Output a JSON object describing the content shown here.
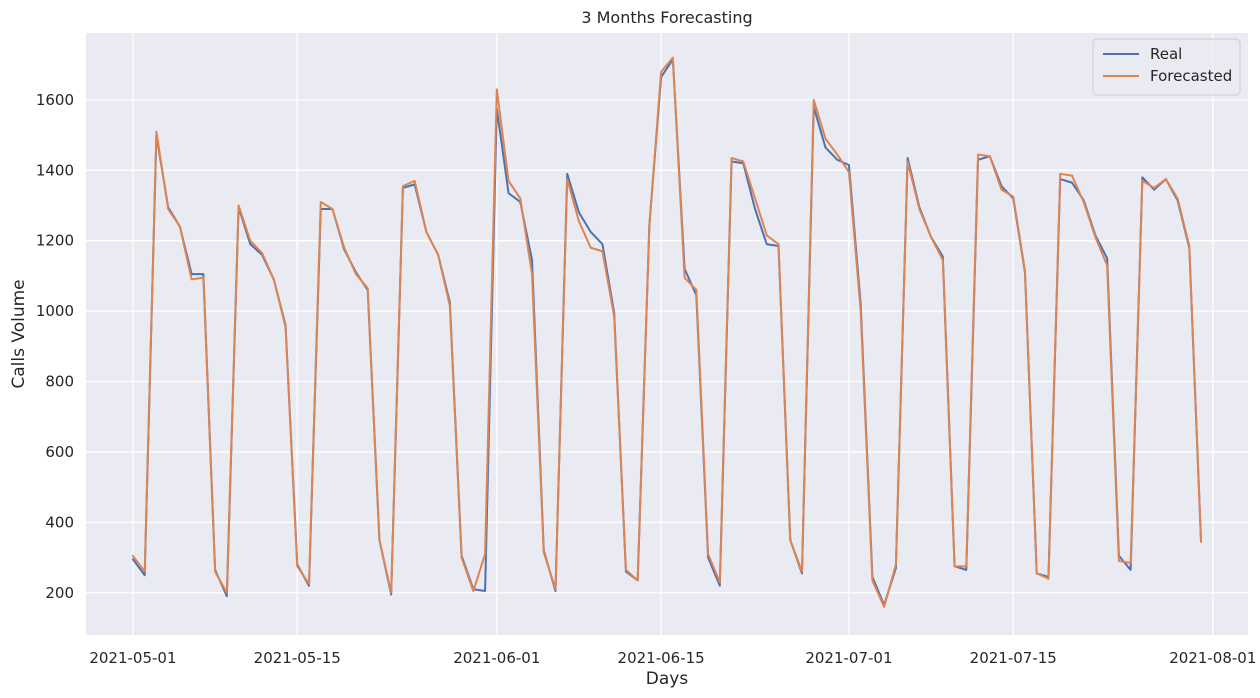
{
  "chart_data": {
    "type": "line",
    "title": "3 Months Forecasting",
    "xlabel": "Days",
    "ylabel": "Calls Volume",
    "x_start": "2021-05-01",
    "x_end": "2021-07-30",
    "xlim": [
      "2021-04-27",
      "2021-08-04"
    ],
    "ylim": [
      80,
      1790
    ],
    "xticks": [
      "2021-05-01",
      "2021-05-15",
      "2021-06-01",
      "2021-06-15",
      "2021-07-01",
      "2021-07-15",
      "2021-08-01"
    ],
    "yticks": [
      200,
      400,
      600,
      800,
      1000,
      1200,
      1400,
      1600
    ],
    "grid": true,
    "legend_position": "top-right",
    "series": [
      {
        "name": "Real",
        "color": "#4C72B0",
        "values": [
          295,
          250,
          1500,
          1295,
          1240,
          1105,
          1105,
          265,
          190,
          1295,
          1190,
          1160,
          1090,
          960,
          280,
          220,
          1290,
          1290,
          1175,
          1110,
          1060,
          350,
          195,
          1350,
          1360,
          1225,
          1160,
          1025,
          305,
          210,
          205,
          1575,
          1335,
          1310,
          1145,
          320,
          205,
          1390,
          1280,
          1225,
          1190,
          995,
          260,
          235,
          1245,
          1665,
          1715,
          1120,
          1045,
          300,
          220,
          1425,
          1420,
          1290,
          1190,
          1185,
          350,
          255,
          1580,
          1465,
          1430,
          1415,
          1020,
          245,
          165,
          270,
          1435,
          1295,
          1210,
          1155,
          275,
          265,
          1430,
          1440,
          1355,
          1320,
          1110,
          255,
          245,
          1375,
          1365,
          1315,
          1215,
          1150,
          305,
          265,
          1380,
          1345,
          1375,
          1315,
          1180,
          345
        ]
      },
      {
        "name": "Forecasted",
        "color": "#DD8452",
        "values": [
          305,
          260,
          1510,
          1290,
          1240,
          1090,
          1095,
          260,
          200,
          1300,
          1200,
          1165,
          1090,
          955,
          275,
          225,
          1310,
          1290,
          1180,
          1105,
          1065,
          350,
          200,
          1355,
          1370,
          1225,
          1160,
          1015,
          300,
          205,
          310,
          1630,
          1370,
          1320,
          1105,
          315,
          210,
          1375,
          1255,
          1180,
          1170,
          985,
          265,
          235,
          1245,
          1680,
          1720,
          1095,
          1060,
          310,
          230,
          1435,
          1425,
          1320,
          1215,
          1190,
          350,
          260,
          1600,
          1490,
          1445,
          1395,
          1000,
          235,
          160,
          280,
          1425,
          1290,
          1210,
          1145,
          275,
          275,
          1445,
          1440,
          1345,
          1325,
          1115,
          255,
          240,
          1390,
          1385,
          1310,
          1210,
          1130,
          290,
          285,
          1370,
          1350,
          1375,
          1320,
          1185,
          345
        ]
      }
    ]
  }
}
